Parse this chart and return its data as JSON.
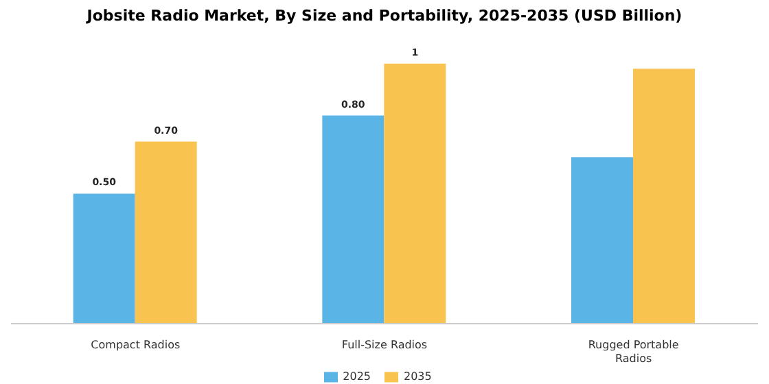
{
  "chart_data": {
    "type": "bar",
    "title": "Jobsite Radio Market, By Size and Portability, 2025-2035 (USD Billion)",
    "categories": [
      "Compact Radios",
      "Full-Size Radios",
      "Rugged Portable Radios"
    ],
    "series": [
      {
        "name": "2025",
        "color": "#5ab4e5",
        "values": [
          0.5,
          0.8,
          0.64
        ],
        "value_labels": [
          "0.50",
          "0.80",
          null
        ]
      },
      {
        "name": "2035",
        "color": "#f9c350",
        "values": [
          0.7,
          1,
          0.98
        ],
        "value_labels": [
          "0.70",
          "1",
          null
        ]
      }
    ],
    "legend": "bottom",
    "grid": false
  }
}
